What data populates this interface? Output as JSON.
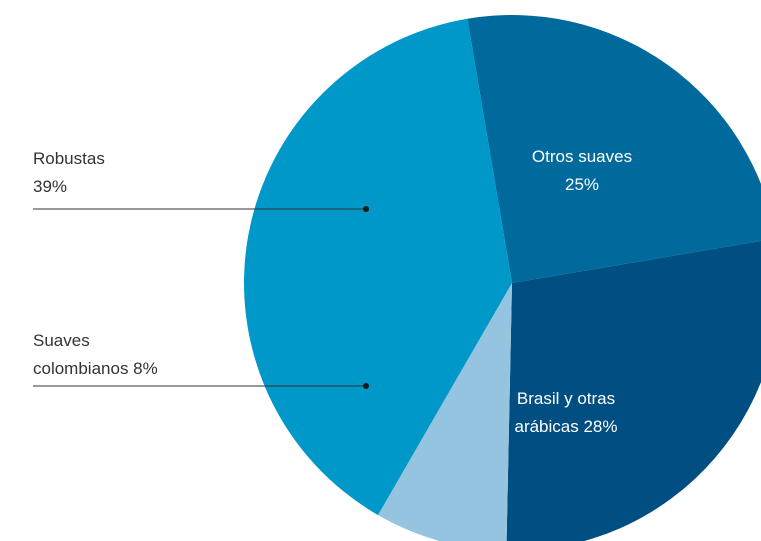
{
  "chart_data": {
    "type": "pie",
    "slices": [
      {
        "label_lines": [
          "Otros suaves",
          "25%"
        ],
        "value": 25,
        "color": "#006a9c",
        "label_position": "inside"
      },
      {
        "label_lines": [
          "Brasil y otras",
          "arábicas 28%"
        ],
        "value": 28,
        "color": "#004e82",
        "label_position": "inside"
      },
      {
        "label_lines": [
          "Suaves",
          "colombianos 8%"
        ],
        "value": 8,
        "color": "#94c4e0",
        "label_position": "left-callout"
      },
      {
        "label_lines": [
          "Robustas",
          "39%"
        ],
        "value": 39,
        "color": "#0098c9",
        "label_position": "left-callout"
      }
    ]
  }
}
